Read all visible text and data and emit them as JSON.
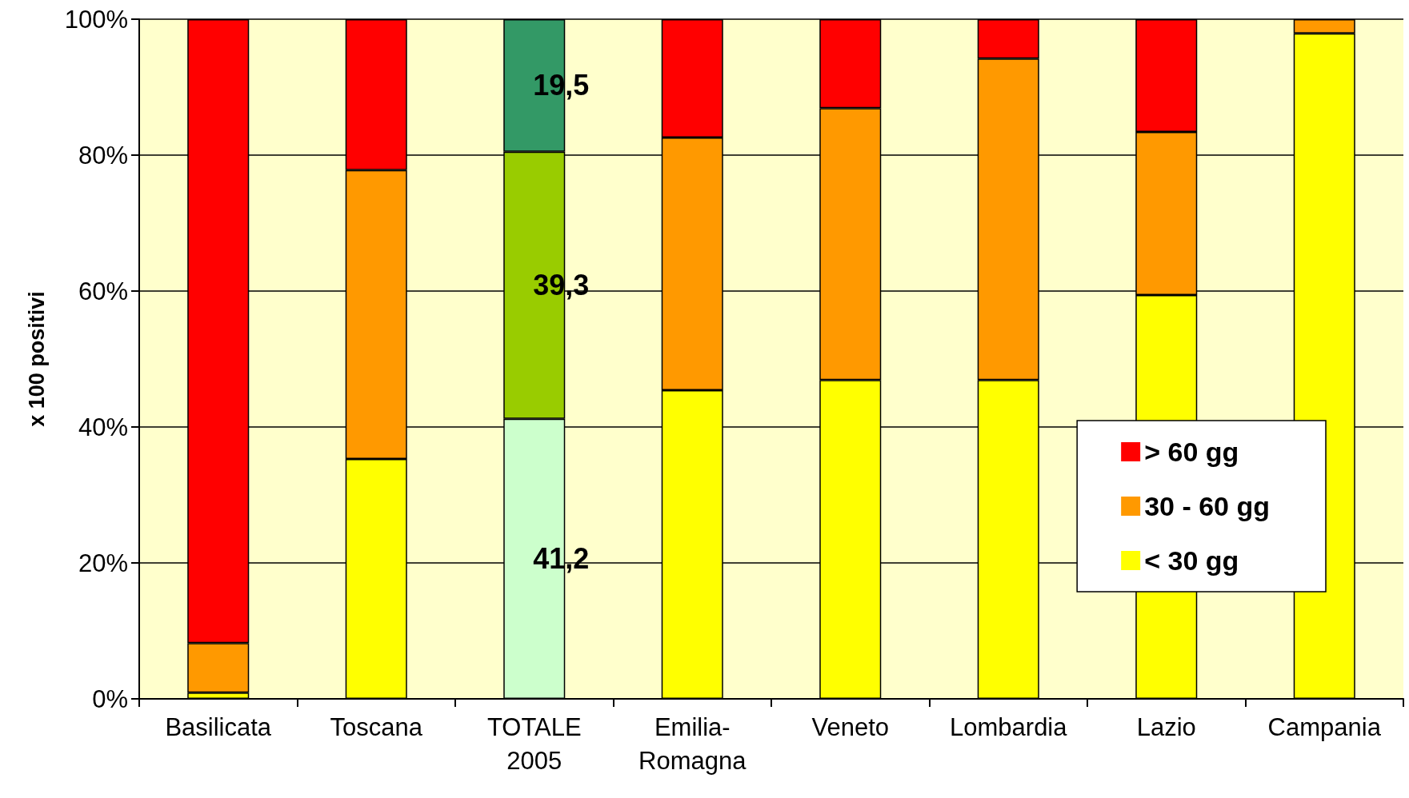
{
  "chart_data": {
    "type": "bar",
    "stacked": true,
    "ylabel": "x 100 positivi",
    "categories": [
      "Basilicata",
      "Toscana",
      "TOTALE\n2005",
      "Emilia-\nRomagna",
      "Veneto",
      "Lombardia",
      "Lazio",
      "Campania"
    ],
    "series": [
      {
        "name": "< 30 gg",
        "color": "#ffff00",
        "colors": [
          "#ffff00",
          "#ffff00",
          "#ccffcc",
          "#ffff00",
          "#ffff00",
          "#ffff00",
          "#ffff00",
          "#ffff00"
        ],
        "values": [
          0.9,
          35.3,
          41.2,
          45.4,
          46.9,
          46.9,
          59.4,
          97.9
        ],
        "value_labels": [
          null,
          null,
          "41,2",
          null,
          null,
          null,
          null,
          null
        ]
      },
      {
        "name": "30 - 60 gg",
        "color": "#ff9900",
        "colors": [
          "#ff9900",
          "#ff9900",
          "#99cc00",
          "#ff9900",
          "#ff9900",
          "#ff9900",
          "#ff9900",
          "#ff9900"
        ],
        "values": [
          7.3,
          42.5,
          39.3,
          37.2,
          40.0,
          47.3,
          24.0,
          2.1
        ],
        "value_labels": [
          null,
          null,
          "39,3",
          null,
          null,
          null,
          null,
          null
        ]
      },
      {
        "name": "> 60 gg",
        "color": "#ff0000",
        "colors": [
          "#ff0000",
          "#ff0000",
          "#339966",
          "#ff0000",
          "#ff0000",
          "#ff0000",
          "#ff0000",
          "#ff0000"
        ],
        "values": [
          91.8,
          22.2,
          19.5,
          17.4,
          13.1,
          5.8,
          16.6,
          0
        ],
        "value_labels": [
          null,
          null,
          "19,5",
          null,
          null,
          null,
          null,
          null
        ]
      }
    ],
    "ylim": [
      0,
      100
    ],
    "yticks": [
      {
        "value": 0,
        "label": "0%"
      },
      {
        "value": 20,
        "label": "20%"
      },
      {
        "value": 40,
        "label": "40%"
      },
      {
        "value": 60,
        "label": "60%"
      },
      {
        "value": 80,
        "label": "80%"
      },
      {
        "value": 100,
        "label": "100%"
      }
    ],
    "grid": "y",
    "legend": "bottom right"
  }
}
